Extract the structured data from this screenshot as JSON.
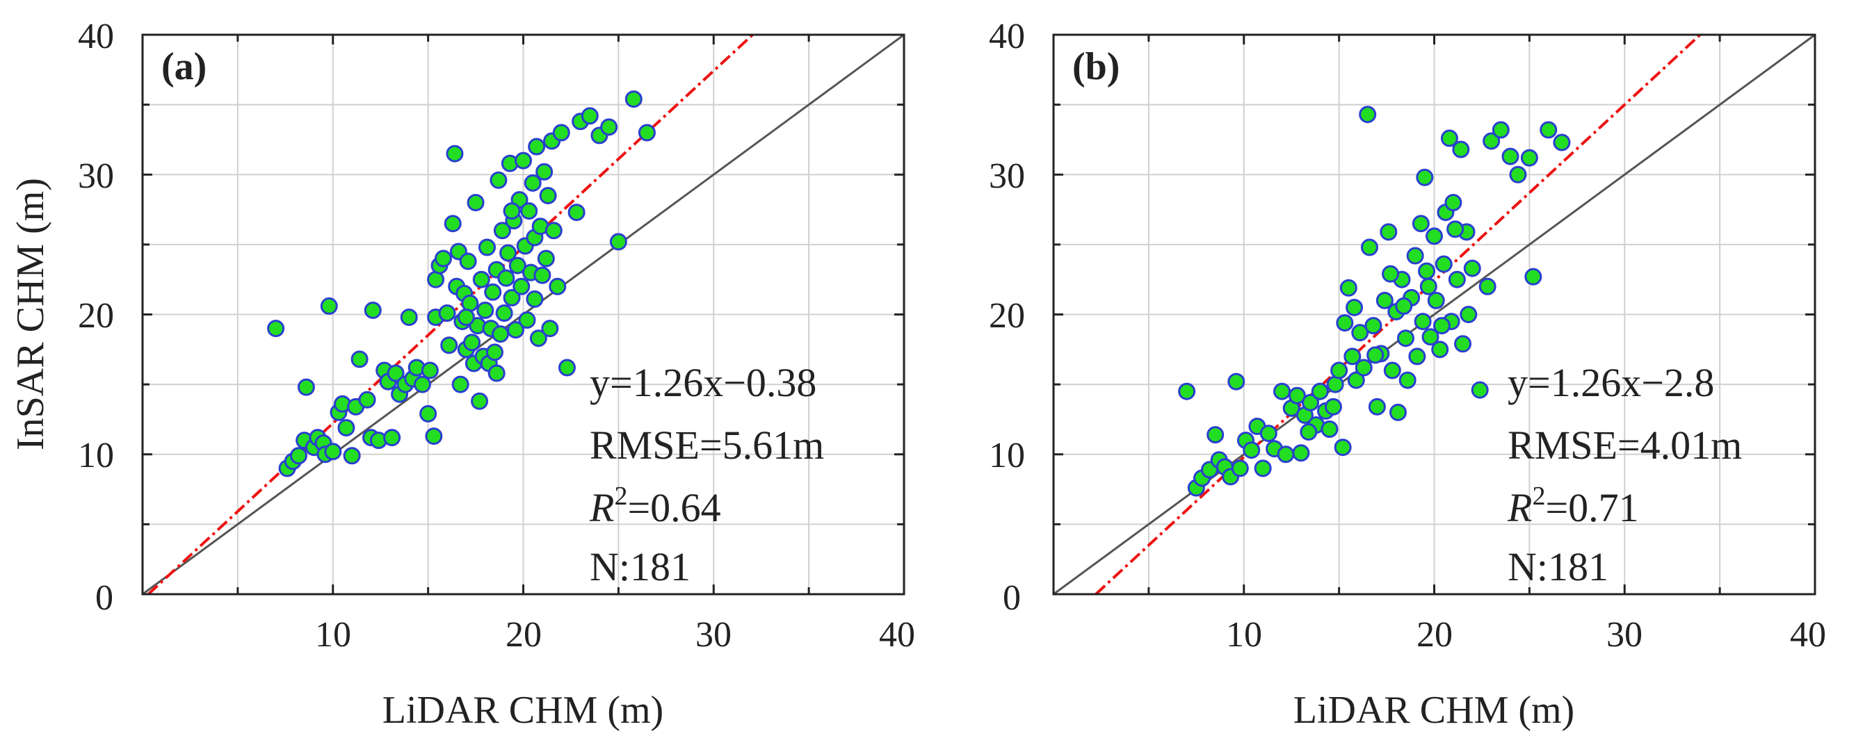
{
  "figure": {
    "colors": {
      "point_fill": "#22dd22",
      "point_stroke": "#2a3fcf",
      "fit_line": "#ee1111",
      "identity_line": "#555555",
      "grid": "#d0d0d0",
      "axis": "#222222"
    },
    "shared_axes": {
      "xlabel": "LiDAR CHM (m)",
      "ylabel": "InSAR CHM (m)",
      "ticks": [
        "0",
        "10",
        "20",
        "30",
        "40"
      ]
    }
  },
  "chart_data": [
    {
      "type": "scatter",
      "panel_label": "(a)",
      "xlabel": "LiDAR CHM (m)",
      "ylabel": "InSAR CHM (m)",
      "xlim": [
        0,
        40
      ],
      "ylim": [
        0,
        40
      ],
      "grid": true,
      "fit_line": {
        "slope": 1.26,
        "intercept": -0.38
      },
      "identity_line": true,
      "annotations": {
        "equation": "y=1.26x−0.38",
        "rmse": "RMSE=5.61m",
        "r2_symbol": "R",
        "r2_exponent": "2",
        "r2_value": "=0.64",
        "n": "N:181"
      },
      "points": [
        [
          7.0,
          19.0
        ],
        [
          7.6,
          9.0
        ],
        [
          7.9,
          9.5
        ],
        [
          8.2,
          9.9
        ],
        [
          8.5,
          11.0
        ],
        [
          8.6,
          14.8
        ],
        [
          9.0,
          10.5
        ],
        [
          9.2,
          11.2
        ],
        [
          9.5,
          10.8
        ],
        [
          9.6,
          10.0
        ],
        [
          9.8,
          20.6
        ],
        [
          10.0,
          10.2
        ],
        [
          10.3,
          13.0
        ],
        [
          10.5,
          13.6
        ],
        [
          10.7,
          11.9
        ],
        [
          11.0,
          9.9
        ],
        [
          11.2,
          13.4
        ],
        [
          11.4,
          16.8
        ],
        [
          11.8,
          13.9
        ],
        [
          12.0,
          11.2
        ],
        [
          12.1,
          20.3
        ],
        [
          12.4,
          11.0
        ],
        [
          12.7,
          16.0
        ],
        [
          12.9,
          15.2
        ],
        [
          13.1,
          11.2
        ],
        [
          13.3,
          15.8
        ],
        [
          13.5,
          14.3
        ],
        [
          13.8,
          15.0
        ],
        [
          14.0,
          19.8
        ],
        [
          14.2,
          15.4
        ],
        [
          14.4,
          16.2
        ],
        [
          14.7,
          15.0
        ],
        [
          15.0,
          12.9
        ],
        [
          15.1,
          16.0
        ],
        [
          15.3,
          11.3
        ],
        [
          15.4,
          19.8
        ],
        [
          15.4,
          22.5
        ],
        [
          15.6,
          23.5
        ],
        [
          15.8,
          24.0
        ],
        [
          16.0,
          20.1
        ],
        [
          16.1,
          17.8
        ],
        [
          16.3,
          26.5
        ],
        [
          16.4,
          31.5
        ],
        [
          16.5,
          22.0
        ],
        [
          16.6,
          24.5
        ],
        [
          16.7,
          15.0
        ],
        [
          16.8,
          19.5
        ],
        [
          16.9,
          21.5
        ],
        [
          17.0,
          17.5
        ],
        [
          17.1,
          23.8
        ],
        [
          17.2,
          20.8
        ],
        [
          17.3,
          18.0
        ],
        [
          17.4,
          16.5
        ],
        [
          17.5,
          28.0
        ],
        [
          17.6,
          19.2
        ],
        [
          17.7,
          13.8
        ],
        [
          17.8,
          22.5
        ],
        [
          17.9,
          17.0
        ],
        [
          18.0,
          20.3
        ],
        [
          18.1,
          24.8
        ],
        [
          18.2,
          16.5
        ],
        [
          18.3,
          19.0
        ],
        [
          18.4,
          21.6
        ],
        [
          18.5,
          17.3
        ],
        [
          18.6,
          23.2
        ],
        [
          18.7,
          29.6
        ],
        [
          18.8,
          18.6
        ],
        [
          18.9,
          26.0
        ],
        [
          19.0,
          20.1
        ],
        [
          19.1,
          22.6
        ],
        [
          19.2,
          24.4
        ],
        [
          19.3,
          30.8
        ],
        [
          19.4,
          21.2
        ],
        [
          19.5,
          26.7
        ],
        [
          19.6,
          18.9
        ],
        [
          19.7,
          23.5
        ],
        [
          19.8,
          28.2
        ],
        [
          19.9,
          22.0
        ],
        [
          20.0,
          31.0
        ],
        [
          20.1,
          24.9
        ],
        [
          20.2,
          19.6
        ],
        [
          20.3,
          27.4
        ],
        [
          20.4,
          23.0
        ],
        [
          20.5,
          29.4
        ],
        [
          20.6,
          25.5
        ],
        [
          20.7,
          32.0
        ],
        [
          20.8,
          18.3
        ],
        [
          20.9,
          26.3
        ],
        [
          21.0,
          22.8
        ],
        [
          21.1,
          30.2
        ],
        [
          21.2,
          24.0
        ],
        [
          21.3,
          28.5
        ],
        [
          21.4,
          19.0
        ],
        [
          21.5,
          32.4
        ],
        [
          21.6,
          26.0
        ],
        [
          21.8,
          22.0
        ],
        [
          22.0,
          33.0
        ],
        [
          22.3,
          16.2
        ],
        [
          22.8,
          27.3
        ],
        [
          23.0,
          33.8
        ],
        [
          23.5,
          34.2
        ],
        [
          24.0,
          32.8
        ],
        [
          24.5,
          33.4
        ],
        [
          25.0,
          25.2
        ],
        [
          25.8,
          35.4
        ],
        [
          26.5,
          33.0
        ],
        [
          17.0,
          19.8
        ],
        [
          18.6,
          15.8
        ],
        [
          19.4,
          27.4
        ],
        [
          20.6,
          21.1
        ]
      ]
    },
    {
      "type": "scatter",
      "panel_label": "(b)",
      "xlabel": "LiDAR CHM (m)",
      "ylabel": "InSAR CHM (m)",
      "xlim": [
        0,
        40
      ],
      "ylim": [
        0,
        40
      ],
      "grid": true,
      "fit_line": {
        "slope": 1.26,
        "intercept": -2.8
      },
      "identity_line": true,
      "annotations": {
        "equation": "y=1.26x−2.8",
        "rmse": "RMSE=4.01m",
        "r2_symbol": "R",
        "r2_exponent": "2",
        "r2_value": "=0.71",
        "n": "N:181"
      },
      "points": [
        [
          7.0,
          14.5
        ],
        [
          7.5,
          7.6
        ],
        [
          7.8,
          8.3
        ],
        [
          8.2,
          8.9
        ],
        [
          8.5,
          11.4
        ],
        [
          8.7,
          9.6
        ],
        [
          9.0,
          9.1
        ],
        [
          9.3,
          8.4
        ],
        [
          9.6,
          15.2
        ],
        [
          9.8,
          9.0
        ],
        [
          10.1,
          11.0
        ],
        [
          10.4,
          10.3
        ],
        [
          10.7,
          12.0
        ],
        [
          11.0,
          9.0
        ],
        [
          11.3,
          11.5
        ],
        [
          11.6,
          10.4
        ],
        [
          12.0,
          14.5
        ],
        [
          12.2,
          10.0
        ],
        [
          12.5,
          13.3
        ],
        [
          12.8,
          14.2
        ],
        [
          13.0,
          10.1
        ],
        [
          13.2,
          12.8
        ],
        [
          13.5,
          13.7
        ],
        [
          13.8,
          12.1
        ],
        [
          14.0,
          14.5
        ],
        [
          14.3,
          13.1
        ],
        [
          14.5,
          11.8
        ],
        [
          14.8,
          15.0
        ],
        [
          15.0,
          16.0
        ],
        [
          15.2,
          10.5
        ],
        [
          15.3,
          19.4
        ],
        [
          15.5,
          21.9
        ],
        [
          15.7,
          17.0
        ],
        [
          15.9,
          15.3
        ],
        [
          16.1,
          18.7
        ],
        [
          16.3,
          16.2
        ],
        [
          16.5,
          34.3
        ],
        [
          16.6,
          24.8
        ],
        [
          16.8,
          19.2
        ],
        [
          17.0,
          13.4
        ],
        [
          17.2,
          17.2
        ],
        [
          17.4,
          21.0
        ],
        [
          17.6,
          25.9
        ],
        [
          17.8,
          16.0
        ],
        [
          18.0,
          20.2
        ],
        [
          18.1,
          13.0
        ],
        [
          18.3,
          22.5
        ],
        [
          18.5,
          18.3
        ],
        [
          18.6,
          15.3
        ],
        [
          18.8,
          21.2
        ],
        [
          19.0,
          24.2
        ],
        [
          19.1,
          17.0
        ],
        [
          19.3,
          26.5
        ],
        [
          19.4,
          19.5
        ],
        [
          19.5,
          29.8
        ],
        [
          19.7,
          22.0
        ],
        [
          19.8,
          18.4
        ],
        [
          20.0,
          25.6
        ],
        [
          20.1,
          21.0
        ],
        [
          20.3,
          17.5
        ],
        [
          20.5,
          23.6
        ],
        [
          20.6,
          27.3
        ],
        [
          20.8,
          32.6
        ],
        [
          20.9,
          19.5
        ],
        [
          21.0,
          28.0
        ],
        [
          21.2,
          22.5
        ],
        [
          21.4,
          31.8
        ],
        [
          21.5,
          17.9
        ],
        [
          21.7,
          25.9
        ],
        [
          21.8,
          20.0
        ],
        [
          22.0,
          23.3
        ],
        [
          22.4,
          14.6
        ],
        [
          22.8,
          22.0
        ],
        [
          23.0,
          32.4
        ],
        [
          23.5,
          33.2
        ],
        [
          24.0,
          31.3
        ],
        [
          24.4,
          30.0
        ],
        [
          25.0,
          31.2
        ],
        [
          25.2,
          22.7
        ],
        [
          26.0,
          33.2
        ],
        [
          26.7,
          32.3
        ],
        [
          15.8,
          20.5
        ],
        [
          16.9,
          17.1
        ],
        [
          17.7,
          22.9
        ],
        [
          18.4,
          20.6
        ],
        [
          19.6,
          23.1
        ],
        [
          20.4,
          19.2
        ],
        [
          21.1,
          26.1
        ],
        [
          14.7,
          13.4
        ],
        [
          13.4,
          11.6
        ]
      ]
    }
  ]
}
